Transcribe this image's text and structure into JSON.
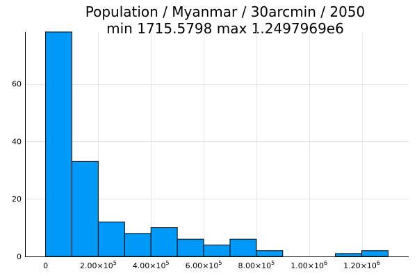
{
  "chart_data": {
    "type": "bar",
    "title": "Population / Myanmar / 30arcmin / 2050",
    "subtitle": "min 1715.5798  max 1.2497969e6",
    "xlabel": "",
    "ylabel": "",
    "bin_width": 100000,
    "bins": [
      {
        "start": 0,
        "end": 100000,
        "count": 78
      },
      {
        "start": 100000,
        "end": 200000,
        "count": 33
      },
      {
        "start": 200000,
        "end": 300000,
        "count": 12
      },
      {
        "start": 300000,
        "end": 400000,
        "count": 8
      },
      {
        "start": 400000,
        "end": 500000,
        "count": 10
      },
      {
        "start": 500000,
        "end": 600000,
        "count": 6
      },
      {
        "start": 600000,
        "end": 700000,
        "count": 4
      },
      {
        "start": 700000,
        "end": 800000,
        "count": 6
      },
      {
        "start": 800000,
        "end": 900000,
        "count": 2
      },
      {
        "start": 900000,
        "end": 1000000,
        "count": 0
      },
      {
        "start": 1000000,
        "end": 1100000,
        "count": 0
      },
      {
        "start": 1100000,
        "end": 1200000,
        "count": 1
      },
      {
        "start": 1200000,
        "end": 1300000,
        "count": 2
      }
    ],
    "xlim": [
      -78000,
      1378000
    ],
    "ylim": [
      0,
      78
    ],
    "x_ticks": [
      {
        "value": 0,
        "mantissa": "0",
        "exp": ""
      },
      {
        "value": 200000,
        "mantissa": "2.00×10",
        "exp": "5"
      },
      {
        "value": 400000,
        "mantissa": "4.00×10",
        "exp": "5"
      },
      {
        "value": 600000,
        "mantissa": "6.00×10",
        "exp": "5"
      },
      {
        "value": 800000,
        "mantissa": "8.00×10",
        "exp": "5"
      },
      {
        "value": 1000000,
        "mantissa": "1.00×10",
        "exp": "6"
      },
      {
        "value": 1200000,
        "mantissa": "1.20×10",
        "exp": "6"
      }
    ],
    "y_ticks": [
      0,
      20,
      40,
      60
    ],
    "grid": true,
    "legend": "none",
    "bar_color": "#009af9"
  }
}
